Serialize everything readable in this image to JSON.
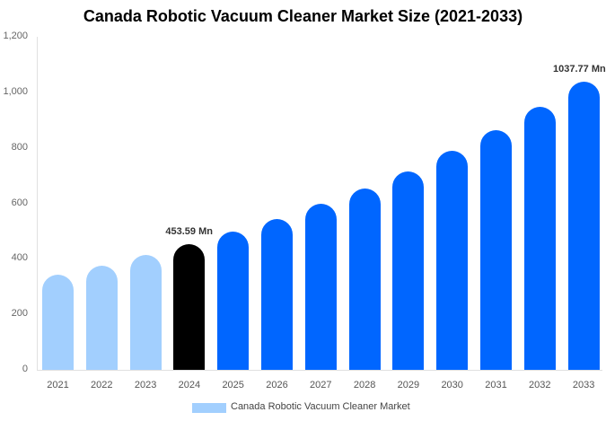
{
  "chart_data": {
    "type": "bar",
    "title": "Canada Robotic Vacuum Cleaner Market Size (2021-2033)",
    "xlabel": "",
    "ylabel": "",
    "ylim": [
      0,
      1200
    ],
    "yticks": [
      0,
      200,
      400,
      600,
      800,
      1000,
      1200
    ],
    "ytick_labels": [
      "0",
      "200",
      "400",
      "600",
      "800",
      "1,000",
      "1,200"
    ],
    "grid": false,
    "legend_position": "bottom",
    "categories": [
      "2021",
      "2022",
      "2023",
      "2024",
      "2025",
      "2026",
      "2027",
      "2028",
      "2029",
      "2030",
      "2031",
      "2032",
      "2033"
    ],
    "series": [
      {
        "name": "Canada Robotic Vacuum Cleaner Market",
        "values": [
          343,
          375,
          414,
          453.59,
          498,
          544,
          599,
          654,
          715,
          790,
          864,
          948,
          1037.77
        ]
      }
    ],
    "bar_colors": [
      "#a2cffe",
      "#a2cffe",
      "#a2cffe",
      "#000000",
      "#0066ff",
      "#0066ff",
      "#0066ff",
      "#0066ff",
      "#0066ff",
      "#0066ff",
      "#0066ff",
      "#0066ff",
      "#0066ff"
    ],
    "annotations": [
      {
        "category": "2024",
        "text": "453.59 Mn"
      },
      {
        "category": "2033",
        "text": "1037.77 Mn"
      }
    ]
  },
  "legend": {
    "label": "Canada Robotic Vacuum Cleaner Market",
    "color": "#a2cffe"
  }
}
